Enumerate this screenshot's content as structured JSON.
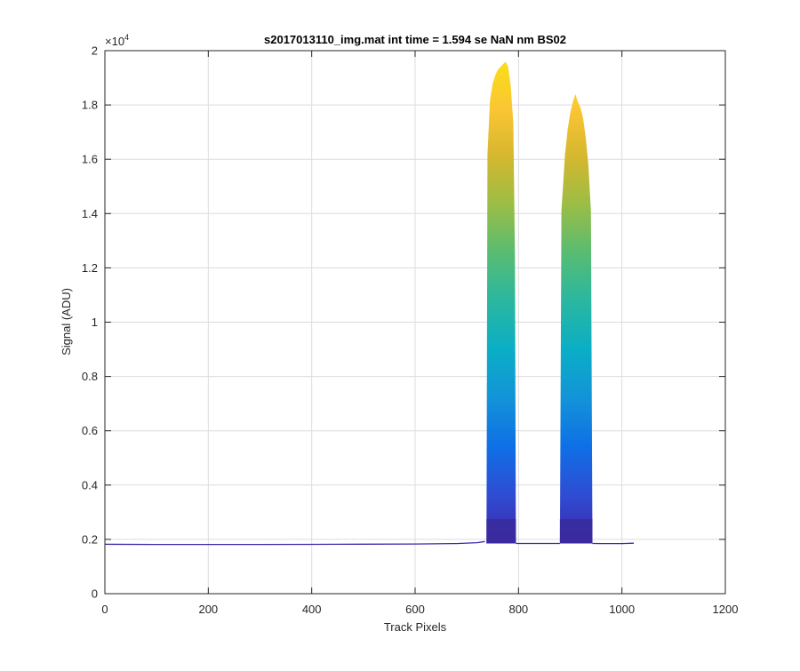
{
  "chart_data": {
    "type": "area",
    "title": "s2017013110_img.mat int time = 1.594 se  NaN nm BS02",
    "xlabel": "Track Pixels",
    "ylabel": "Signal (ADU)",
    "xlim": [
      0,
      1200
    ],
    "ylim": [
      0,
      20000
    ],
    "y_exponent_label": "×10⁴",
    "y_exponent_base": "×10",
    "y_exponent_power": "4",
    "grid": true,
    "legend": "none",
    "x_ticks": [
      0,
      200,
      400,
      600,
      800,
      1000,
      1200
    ],
    "x_tick_labels": [
      "0",
      "200",
      "400",
      "600",
      "800",
      "1000",
      "1200"
    ],
    "y_ticks": [
      0,
      2000,
      4000,
      6000,
      8000,
      10000,
      12000,
      14000,
      16000,
      18000,
      20000
    ],
    "y_tick_labels": [
      "0",
      "0.2",
      "0.4",
      "0.6",
      "0.8",
      "1",
      "1.2",
      "1.4",
      "1.6",
      "1.8",
      "2"
    ],
    "colormap": [
      "#3e26a8",
      "#2f4cd2",
      "#0f6fe6",
      "#1393d8",
      "#0aaec6",
      "#2ab7a0",
      "#58bc72",
      "#9bbd45",
      "#d6b72f",
      "#fbc633",
      "#f9e017"
    ],
    "baseline": {
      "x": [
        0,
        100,
        200,
        300,
        400,
        500,
        600,
        680,
        720,
        735
      ],
      "values": [
        1820,
        1815,
        1812,
        1815,
        1818,
        1822,
        1830,
        1845,
        1880,
        1920
      ]
    },
    "peaks": [
      {
        "x_start": 738,
        "x_end": 795,
        "base": 1850,
        "upper_envelope": {
          "x": [
            740,
            745,
            750,
            755,
            760,
            765,
            770,
            775,
            780,
            785,
            790,
            793
          ],
          "values": [
            16200,
            18200,
            18800,
            19100,
            19300,
            19400,
            19500,
            19600,
            19400,
            18700,
            17300,
            12500
          ]
        }
      },
      {
        "x_start": 880,
        "x_end": 943,
        "base": 1850,
        "upper_envelope": {
          "x": [
            883,
            890,
            895,
            900,
            905,
            910,
            915,
            920,
            925,
            930,
            935,
            940
          ],
          "values": [
            14100,
            16200,
            17100,
            17700,
            18100,
            18400,
            18100,
            17900,
            17500,
            16800,
            15800,
            14100
          ]
        }
      }
    ],
    "tail": {
      "x": [
        943,
        960,
        1000,
        1023
      ],
      "values": [
        1850,
        1845,
        1845,
        1860
      ]
    }
  }
}
